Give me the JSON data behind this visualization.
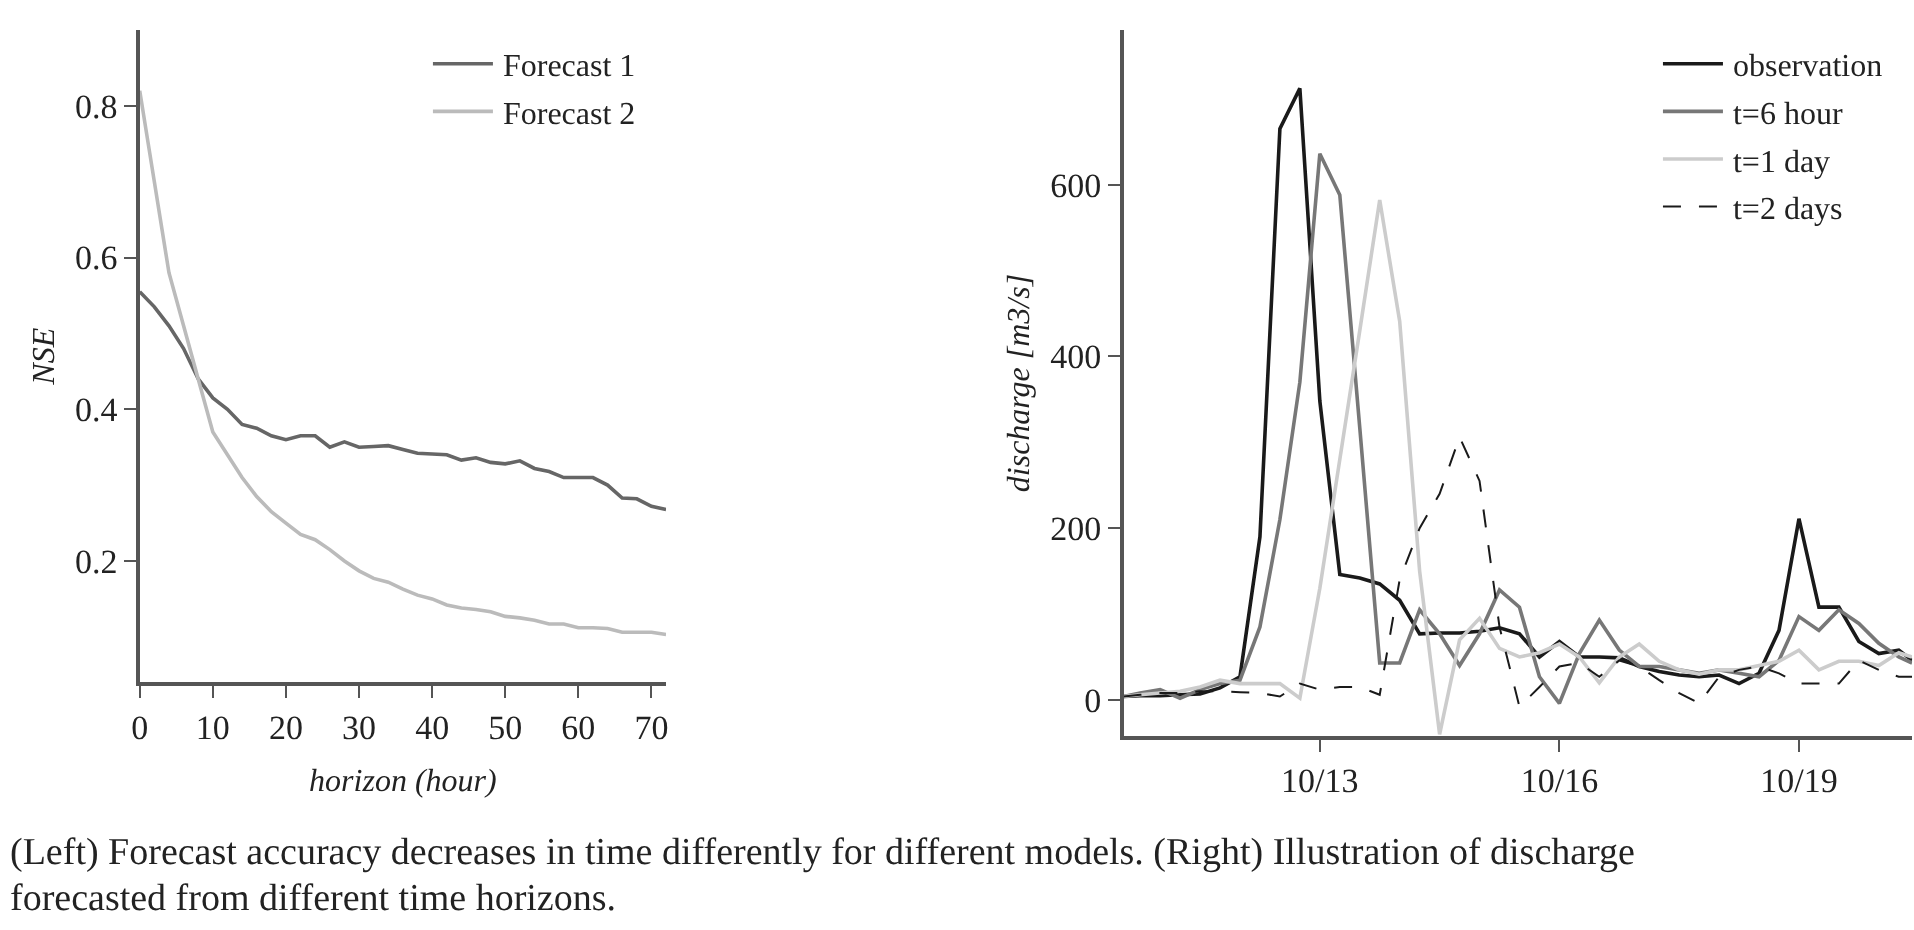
{
  "chart_data": [
    {
      "type": "line",
      "xlabel": "horizon (hour)",
      "ylabel": "NSE",
      "legend": "top right",
      "x": [
        0,
        2,
        4,
        6,
        8,
        10,
        12,
        14,
        16,
        18,
        20,
        22,
        24,
        26,
        28,
        30,
        32,
        34,
        36,
        38,
        40,
        42,
        44,
        46,
        48,
        50,
        52,
        54,
        56,
        58,
        60,
        62,
        64,
        66,
        68,
        70,
        72
      ],
      "xlim": [
        0,
        72
      ],
      "xticks": [
        0,
        10,
        20,
        30,
        40,
        50,
        60,
        70
      ],
      "ylim": [
        0.04,
        0.9
      ],
      "yticks": [
        0.2,
        0.4,
        0.6,
        0.8
      ],
      "series": [
        {
          "name": "Forecast 1",
          "color": "#666666",
          "values": [
            0.555,
            0.535,
            0.51,
            0.48,
            0.44,
            0.415,
            0.4,
            0.38,
            0.375,
            0.365,
            0.36,
            0.365,
            0.365,
            0.35,
            0.357,
            0.35,
            0.351,
            0.352,
            0.347,
            0.342,
            0.341,
            0.34,
            0.333,
            0.336,
            0.33,
            0.328,
            0.332,
            0.322,
            0.318,
            0.31,
            0.31,
            0.31,
            0.3,
            0.283,
            0.282,
            0.272,
            0.268
          ]
        },
        {
          "name": "Forecast 2",
          "color": "#bbbbbb",
          "values": [
            0.82,
            0.7,
            0.58,
            0.51,
            0.44,
            0.37,
            0.34,
            0.31,
            0.285,
            0.265,
            0.25,
            0.235,
            0.228,
            0.215,
            0.2,
            0.187,
            0.177,
            0.172,
            0.163,
            0.155,
            0.15,
            0.142,
            0.138,
            0.136,
            0.133,
            0.127,
            0.125,
            0.122,
            0.117,
            0.117,
            0.112,
            0.112,
            0.111,
            0.106,
            0.106,
            0.106,
            0.103
          ]
        }
      ],
      "annotations": [
        "(Left) Forecast accuracy decreases in time differently for different models. (Right) Illustration of discharge",
        "forecasted from different time horizons."
      ]
    },
    {
      "type": "line",
      "ylabel": "discharge [m3/s]",
      "legend": "top right",
      "x": [
        "--10-10T13:00",
        "--10-10T18:00",
        "--10-11T00:00",
        "--10-11T06:00",
        "--10-11T12:00",
        "--10-11T18:00",
        "--10-12T00:00",
        "--10-12T06:00",
        "--10-12T12:00",
        "--10-12T18:00",
        "--10-13T00:00",
        "--10-13T06:00",
        "--10-13T12:00",
        "--10-13T18:00",
        "--10-14T00:00",
        "--10-14T06:00",
        "--10-14T12:00",
        "--10-14T18:00",
        "--10-15T00:00",
        "--10-15T06:00",
        "--10-15T12:00",
        "--10-15T18:00",
        "--10-16T00:00",
        "--10-16T06:00",
        "--10-16T12:00",
        "--10-16T18:00",
        "--10-17T00:00",
        "--10-17T06:00",
        "--10-17T12:00",
        "--10-17T18:00",
        "--10-18T00:00",
        "--10-18T06:00",
        "--10-18T12:00",
        "--10-18T18:00",
        "--10-19T00:00",
        "--10-19T06:00",
        "--10-19T12:00",
        "--10-19T18:00",
        "--10-20T00:00",
        "--10-20T06:00",
        "--10-20T10:00"
      ],
      "xlim": [
        "--10-10T13:00",
        "--10-20T10:00"
      ],
      "xticks": [
        {
          "value": "--10-13",
          "label": "10/13"
        },
        {
          "value": "--10-16",
          "label": "10/16"
        },
        {
          "value": "--10-19",
          "label": "10/19"
        }
      ],
      "ylim": [
        -42,
        780
      ],
      "yticks": [
        0,
        200,
        400,
        600
      ],
      "series": [
        {
          "name": "observation",
          "color": "#1a1a1a",
          "values": [
            4,
            5,
            5,
            6,
            7,
            14,
            27,
            190,
            665,
            712,
            348,
            146,
            142,
            135,
            116,
            77,
            78,
            78,
            80,
            84,
            77,
            50,
            68,
            50,
            50,
            49,
            39,
            33,
            29,
            27,
            29,
            19,
            31,
            81,
            211,
            108,
            108,
            68,
            54,
            58,
            46
          ]
        },
        {
          "name": "t=6 hour",
          "color": "#777777",
          "values": [
            4,
            8,
            12,
            2,
            12,
            19,
            23,
            85,
            210,
            370,
            636,
            588,
            317,
            43,
            43,
            105,
            77,
            40,
            77,
            128,
            108,
            27,
            -4,
            54,
            93,
            58,
            39,
            39,
            35,
            31,
            35,
            31,
            27,
            46,
            97,
            81,
            105,
            89,
            66,
            50,
            43
          ]
        },
        {
          "name": "t=1 day",
          "color": "#cccccc",
          "values": [
            4,
            6,
            8,
            10,
            15,
            23,
            19,
            19,
            19,
            2,
            130,
            280,
            430,
            582,
            441,
            150,
            -40,
            70,
            95,
            60,
            50,
            55,
            65,
            50,
            20,
            50,
            65,
            45,
            35,
            30,
            35,
            35,
            40,
            45,
            58,
            35,
            45,
            45,
            40,
            55,
            50
          ]
        },
        {
          "name": "t=2 days",
          "color": "#1a1a1a",
          "line_style": "dashed",
          "values": [
            4,
            6,
            8,
            8,
            10,
            10,
            9,
            8,
            4,
            19,
            12,
            15,
            15,
            6,
            140,
            200,
            240,
            306,
            255,
            85,
            -8,
            15,
            39,
            43,
            27,
            46,
            39,
            23,
            8,
            -4,
            27,
            35,
            39,
            31,
            19,
            19,
            19,
            46,
            35,
            27,
            27
          ]
        }
      ]
    }
  ]
}
